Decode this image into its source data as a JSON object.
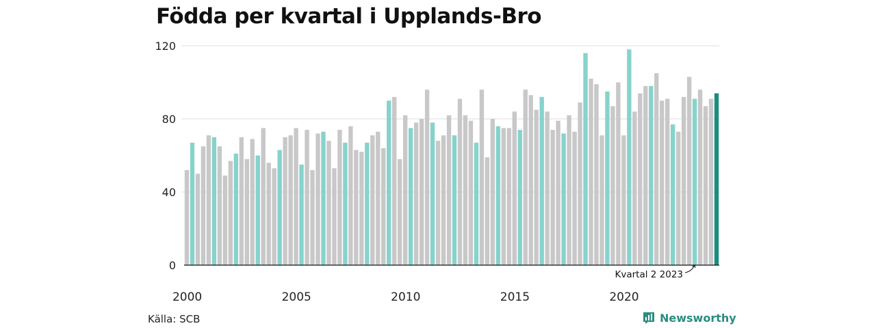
{
  "chart_data": {
    "type": "bar",
    "title": "Födda per kvartal i Upplands-Bro",
    "x_tick_labels": [
      "2000",
      "2005",
      "2010",
      "2015",
      "2020"
    ],
    "y_ticks": [
      0,
      40,
      80,
      120
    ],
    "ylim": [
      0,
      125
    ],
    "grid": true,
    "start": "2000 Q1",
    "values": [
      52,
      67,
      50,
      65,
      71,
      70,
      65,
      49,
      57,
      61,
      70,
      58,
      69,
      60,
      75,
      56,
      53,
      63,
      70,
      71,
      75,
      55,
      74,
      52,
      72,
      73,
      68,
      53,
      74,
      67,
      76,
      63,
      62,
      67,
      71,
      73,
      64,
      90,
      92,
      58,
      82,
      75,
      78,
      80,
      96,
      78,
      68,
      71,
      82,
      71,
      91,
      82,
      79,
      67,
      96,
      59,
      80,
      76,
      75,
      75,
      84,
      74,
      96,
      93,
      85,
      92,
      84,
      74,
      79,
      72,
      82,
      73,
      89,
      116,
      102,
      99,
      71,
      95,
      87,
      100,
      71,
      118,
      84,
      94,
      98,
      98,
      105,
      90,
      91,
      77,
      73,
      92,
      103,
      91,
      96,
      87,
      91,
      94
    ],
    "annotation": "Kvartal 2 2023",
    "colors": {
      "other_quarters": "#c8c8c8",
      "second_quarter": "#86d3cc",
      "latest": "#1b8c80",
      "grid": "#dddddd"
    }
  },
  "source": "Källa: SCB",
  "brand": {
    "name": "Newsworthy",
    "icon": "chart-logo-icon",
    "color": "#2a8d7e"
  }
}
